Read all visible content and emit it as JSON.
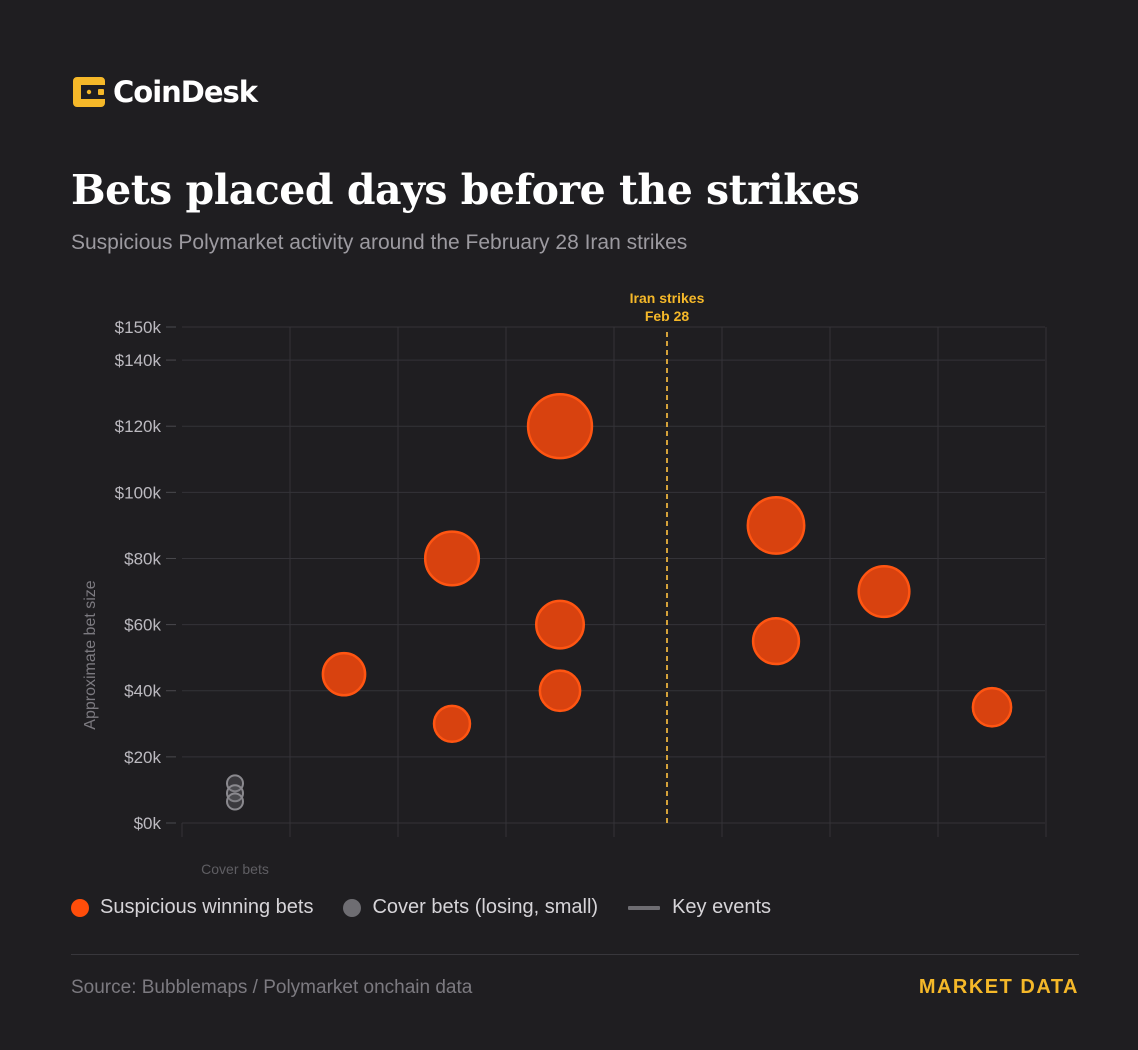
{
  "brand": {
    "name": "CoinDesk",
    "accent": "#f5b829"
  },
  "title": "Bets placed days before the strikes",
  "subtitle": "Suspicious Polymarket activity around the February 28 Iran strikes",
  "legend": {
    "suspicious": "Suspicious winning bets",
    "cover": "Cover bets (losing, small)",
    "events": "Key events"
  },
  "footer": {
    "source": "Source: Bubblemaps / Polymarket onchain data",
    "tag": "MARKET DATA"
  },
  "colors": {
    "suspicious": "#ff4d0a",
    "cover": "#6e6d72",
    "event": "#d4a23a",
    "grid": "#343338"
  },
  "chart_data": {
    "type": "scatter",
    "title": "",
    "ylabel": "Approximate bet size",
    "ylim": [
      0,
      150000
    ],
    "y_ticks": [
      {
        "value": 0,
        "label": "$0k"
      },
      {
        "value": 20000,
        "label": "$20k"
      },
      {
        "value": 40000,
        "label": "$40k"
      },
      {
        "value": 60000,
        "label": "$60k"
      },
      {
        "value": 80000,
        "label": "$80k"
      },
      {
        "value": 100000,
        "label": "$100k"
      },
      {
        "value": 120000,
        "label": "$120k"
      },
      {
        "value": 140000,
        "label": "$140k"
      },
      {
        "value": 150000,
        "label": "$150k"
      }
    ],
    "x_category_label": "Cover bets",
    "event": {
      "label_line1": "Iran strikes",
      "label_line2": "Feb 28"
    },
    "grid": true,
    "series": [
      {
        "name": "Suspicious winning bets",
        "points": [
          {
            "x": 2,
            "y": 45000
          },
          {
            "x": 3,
            "y": 80000
          },
          {
            "x": 3,
            "y": 30000
          },
          {
            "x": 4,
            "y": 120000
          },
          {
            "x": 4,
            "y": 60000
          },
          {
            "x": 4,
            "y": 40000
          },
          {
            "x": 6,
            "y": 90000
          },
          {
            "x": 6,
            "y": 55000
          },
          {
            "x": 7,
            "y": 70000
          },
          {
            "x": 8,
            "y": 35000
          }
        ]
      },
      {
        "name": "Cover bets (losing, small)",
        "points": [
          {
            "x": 1,
            "y": 12000
          },
          {
            "x": 1,
            "y": 9000
          },
          {
            "x": 1,
            "y": 6500
          }
        ]
      }
    ]
  }
}
